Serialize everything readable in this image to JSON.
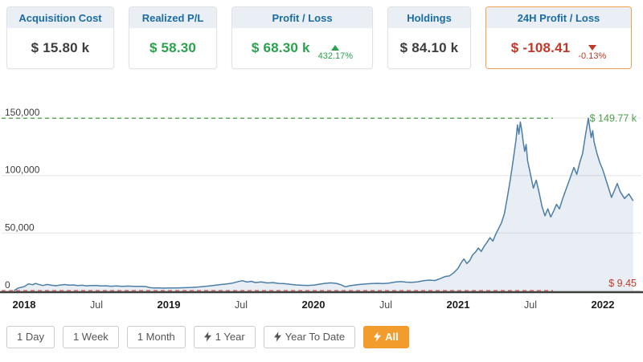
{
  "colors": {
    "accent_orange": "#f39c2e",
    "positive_green": "#2aa14d",
    "negative_red": "#c0392b",
    "card_header_blue": "#1a6ca3",
    "chart_line_blue": "#4c7ea6",
    "ath_line_green": "#55a555",
    "atl_line_red": "#cc5555"
  },
  "cards": [
    {
      "label": "Acquisition Cost",
      "value": "$ 15.80 k",
      "value_color": "dark",
      "highlighted": false
    },
    {
      "label": "Realized P/L",
      "value": "$ 58.30",
      "value_color": "green",
      "highlighted": false
    },
    {
      "label": "Profit / Loss",
      "value": "$ 68.30 k",
      "value_color": "green",
      "change": "432.17%",
      "change_dir": "up",
      "highlighted": false
    },
    {
      "label": "Holdings",
      "value": "$ 84.10 k",
      "value_color": "dark",
      "highlighted": false
    },
    {
      "label": "24H Profit / Loss",
      "value": "$ -108.41",
      "value_color": "red",
      "change": "-0.13%",
      "change_dir": "down",
      "highlighted": true
    }
  ],
  "chart_data": {
    "type": "area",
    "x_unit": "year (fractional)",
    "y_unit": "USD thousands",
    "ylim": [
      0,
      150
    ],
    "grid": true,
    "y_ticks": [
      {
        "value": 0,
        "label": "0"
      },
      {
        "value": 50,
        "label": "50,000"
      },
      {
        "value": 100,
        "label": "100,000"
      },
      {
        "value": 150,
        "label": "150,000"
      }
    ],
    "x_ticks": [
      {
        "value": 2018,
        "label": "2018",
        "major": true
      },
      {
        "value": 2018.5,
        "label": "Jul",
        "major": false
      },
      {
        "value": 2019,
        "label": "2019",
        "major": true
      },
      {
        "value": 2019.5,
        "label": "Jul",
        "major": false
      },
      {
        "value": 2020,
        "label": "2020",
        "major": true
      },
      {
        "value": 2020.5,
        "label": "Jul",
        "major": false
      },
      {
        "value": 2021,
        "label": "2021",
        "major": true
      },
      {
        "value": 2021.5,
        "label": "Jul",
        "major": false
      },
      {
        "value": 2022,
        "label": "2022",
        "major": true
      }
    ],
    "ath": {
      "value": 149.77,
      "label": "$ 149.77 k"
    },
    "atl": {
      "value": 0.00945,
      "label": "$ 9.45"
    },
    "points": [
      [
        2017.93,
        0.009
      ],
      [
        2017.96,
        2.2
      ],
      [
        2018.0,
        3.4
      ],
      [
        2018.03,
        5.8
      ],
      [
        2018.06,
        5.1
      ],
      [
        2018.08,
        6.2
      ],
      [
        2018.1,
        5.4
      ],
      [
        2018.13,
        4.4
      ],
      [
        2018.16,
        5.3
      ],
      [
        2018.19,
        4.6
      ],
      [
        2018.22,
        4.2
      ],
      [
        2018.25,
        4.8
      ],
      [
        2018.28,
        5.2
      ],
      [
        2018.31,
        4.7
      ],
      [
        2018.34,
        4.9
      ],
      [
        2018.37,
        4.4
      ],
      [
        2018.4,
        4.6
      ],
      [
        2018.43,
        4.1
      ],
      [
        2018.46,
        4.3
      ],
      [
        2018.5,
        4.5
      ],
      [
        2018.53,
        4.0
      ],
      [
        2018.56,
        4.2
      ],
      [
        2018.6,
        3.8
      ],
      [
        2018.64,
        4.0
      ],
      [
        2018.68,
        3.7
      ],
      [
        2018.72,
        3.9
      ],
      [
        2018.76,
        3.6
      ],
      [
        2018.8,
        3.7
      ],
      [
        2018.84,
        3.5
      ],
      [
        2018.87,
        2.5
      ],
      [
        2018.9,
        2.2
      ],
      [
        2018.93,
        2.4
      ],
      [
        2018.96,
        2.1
      ],
      [
        2019.0,
        2.3
      ],
      [
        2019.04,
        2.2
      ],
      [
        2019.08,
        2.4
      ],
      [
        2019.12,
        2.5
      ],
      [
        2019.16,
        2.7
      ],
      [
        2019.2,
        3.1
      ],
      [
        2019.24,
        3.5
      ],
      [
        2019.28,
        4.0
      ],
      [
        2019.32,
        4.6
      ],
      [
        2019.36,
        5.2
      ],
      [
        2019.4,
        5.8
      ],
      [
        2019.44,
        6.5
      ],
      [
        2019.48,
        7.8
      ],
      [
        2019.51,
        8.6
      ],
      [
        2019.54,
        7.4
      ],
      [
        2019.57,
        8.0
      ],
      [
        2019.6,
        7.0
      ],
      [
        2019.64,
        7.5
      ],
      [
        2019.68,
        6.6
      ],
      [
        2019.72,
        6.9
      ],
      [
        2019.76,
        6.2
      ],
      [
        2019.8,
        6.0
      ],
      [
        2019.84,
        5.4
      ],
      [
        2019.88,
        4.9
      ],
      [
        2019.92,
        4.6
      ],
      [
        2019.96,
        4.5
      ],
      [
        2020.0,
        4.7
      ],
      [
        2020.04,
        5.5
      ],
      [
        2020.08,
        6.3
      ],
      [
        2020.12,
        6.7
      ],
      [
        2020.16,
        6.2
      ],
      [
        2020.19,
        5.0
      ],
      [
        2020.22,
        3.3
      ],
      [
        2020.25,
        4.2
      ],
      [
        2020.28,
        4.7
      ],
      [
        2020.32,
        5.3
      ],
      [
        2020.36,
        5.8
      ],
      [
        2020.4,
        6.1
      ],
      [
        2020.44,
        6.3
      ],
      [
        2020.48,
        6.1
      ],
      [
        2020.52,
        6.4
      ],
      [
        2020.56,
        7.3
      ],
      [
        2020.6,
        7.8
      ],
      [
        2020.64,
        7.3
      ],
      [
        2020.68,
        7.1
      ],
      [
        2020.72,
        7.6
      ],
      [
        2020.76,
        8.5
      ],
      [
        2020.8,
        9.1
      ],
      [
        2020.84,
        8.7
      ],
      [
        2020.88,
        10.6
      ],
      [
        2020.91,
        12.2
      ],
      [
        2020.94,
        12.8
      ],
      [
        2020.97,
        15.5
      ],
      [
        2021.0,
        19.5
      ],
      [
        2021.02,
        24.0
      ],
      [
        2021.04,
        27.5
      ],
      [
        2021.06,
        23.5
      ],
      [
        2021.08,
        26.0
      ],
      [
        2021.1,
        31.0
      ],
      [
        2021.12,
        33.5
      ],
      [
        2021.14,
        37.0
      ],
      [
        2021.16,
        34.0
      ],
      [
        2021.18,
        38.5
      ],
      [
        2021.2,
        42.0
      ],
      [
        2021.22,
        46.0
      ],
      [
        2021.24,
        43.0
      ],
      [
        2021.26,
        49.0
      ],
      [
        2021.28,
        54.0
      ],
      [
        2021.3,
        59.0
      ],
      [
        2021.32,
        67.0
      ],
      [
        2021.34,
        81.0
      ],
      [
        2021.36,
        96.0
      ],
      [
        2021.38,
        113.0
      ],
      [
        2021.4,
        131.0
      ],
      [
        2021.41,
        144.0
      ],
      [
        2021.42,
        136.0
      ],
      [
        2021.43,
        146.5
      ],
      [
        2021.44,
        139.0
      ],
      [
        2021.45,
        129.0
      ],
      [
        2021.46,
        121.0
      ],
      [
        2021.47,
        127.0
      ],
      [
        2021.48,
        113.0
      ],
      [
        2021.5,
        101.0
      ],
      [
        2021.52,
        89.0
      ],
      [
        2021.54,
        96.0
      ],
      [
        2021.56,
        85.0
      ],
      [
        2021.58,
        73.0
      ],
      [
        2021.6,
        65.0
      ],
      [
        2021.62,
        71.0
      ],
      [
        2021.64,
        64.0
      ],
      [
        2021.66,
        69.0
      ],
      [
        2021.68,
        75.0
      ],
      [
        2021.7,
        71.0
      ],
      [
        2021.72,
        79.0
      ],
      [
        2021.74,
        86.0
      ],
      [
        2021.76,
        93.0
      ],
      [
        2021.78,
        100.0
      ],
      [
        2021.8,
        107.0
      ],
      [
        2021.82,
        101.0
      ],
      [
        2021.84,
        111.0
      ],
      [
        2021.86,
        119.0
      ],
      [
        2021.88,
        135.0
      ],
      [
        2021.9,
        149.77
      ],
      [
        2021.91,
        141.0
      ],
      [
        2021.92,
        133.0
      ],
      [
        2021.93,
        139.0
      ],
      [
        2021.94,
        129.0
      ],
      [
        2021.96,
        119.0
      ],
      [
        2021.98,
        111.0
      ],
      [
        2022.0,
        105.0
      ],
      [
        2022.02,
        97.0
      ],
      [
        2022.04,
        89.0
      ],
      [
        2022.06,
        81.0
      ],
      [
        2022.08,
        87.0
      ],
      [
        2022.1,
        93.0
      ],
      [
        2022.12,
        86.0
      ],
      [
        2022.15,
        80.0
      ],
      [
        2022.18,
        84.0
      ],
      [
        2022.21,
        78.0
      ]
    ]
  },
  "range_buttons": [
    {
      "label": "1 Day",
      "bolt": false,
      "active": false
    },
    {
      "label": "1 Week",
      "bolt": false,
      "active": false
    },
    {
      "label": "1 Month",
      "bolt": false,
      "active": false
    },
    {
      "label": "1 Year",
      "bolt": true,
      "active": false
    },
    {
      "label": "Year To Date",
      "bolt": true,
      "active": false
    },
    {
      "label": "All",
      "bolt": true,
      "active": true
    }
  ]
}
